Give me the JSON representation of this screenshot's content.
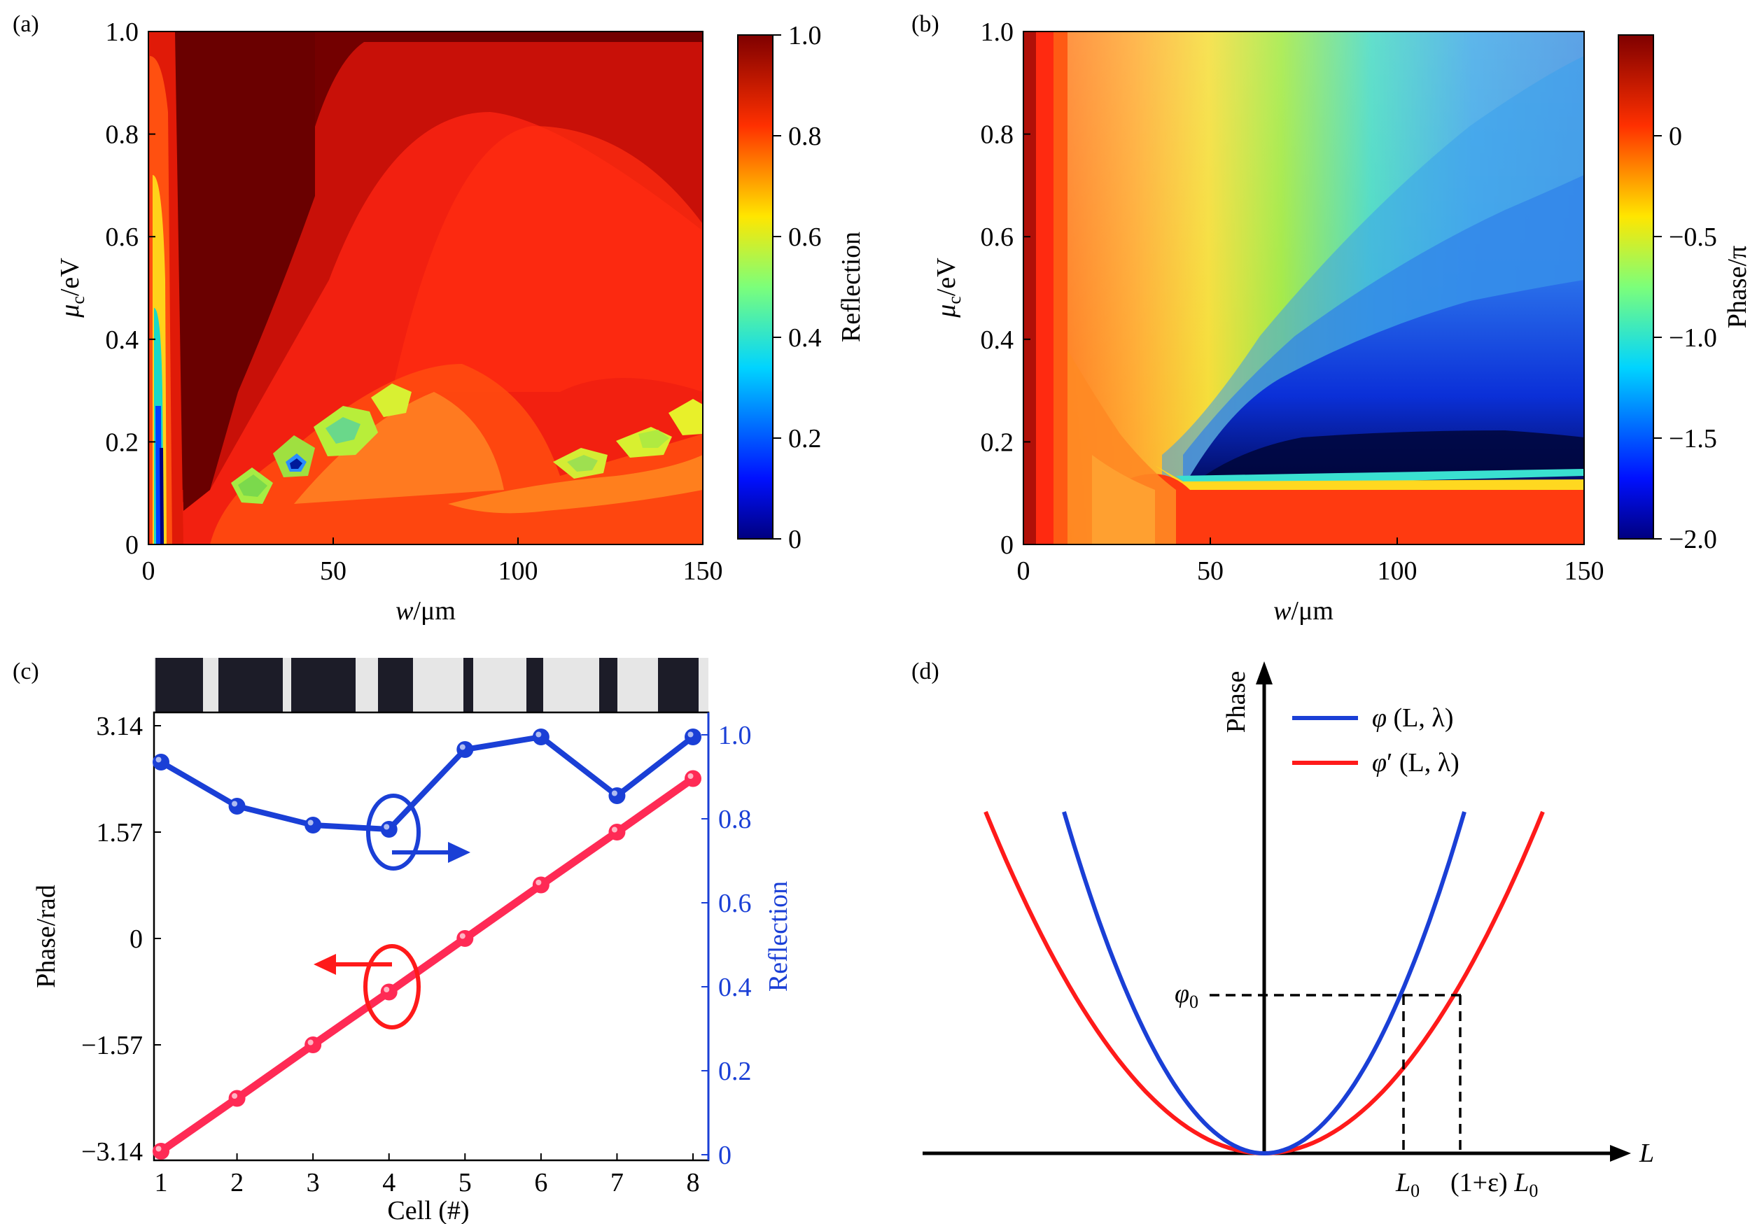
{
  "chart_data": [
    {
      "panel": "(a)",
      "type": "heatmap",
      "xlabel_italic": "w",
      "xlabel_rest": "/μm",
      "ylabel_sym": "μ",
      "ylabel_sub": "c",
      "ylabel_rest": "/eV",
      "xlim": [
        0,
        150
      ],
      "ylim": [
        0,
        1.0
      ],
      "xticks": [
        "0",
        "50",
        "100",
        "150"
      ],
      "yticks": [
        "0",
        "0.2",
        "0.4",
        "0.6",
        "0.8",
        "1.0"
      ],
      "colorbar": {
        "label": "Reflection",
        "range": [
          0,
          1.0
        ],
        "ticks": [
          "0",
          "0.2",
          "0.4",
          "0.6",
          "0.8",
          "1.0"
        ]
      }
    },
    {
      "panel": "(b)",
      "type": "heatmap",
      "xlabel_italic": "w",
      "xlabel_rest": "/μm",
      "ylabel_sym": "μ",
      "ylabel_sub": "c",
      "ylabel_rest": "/eV",
      "xlim": [
        0,
        150
      ],
      "ylim": [
        0,
        1.0
      ],
      "xticks": [
        "0",
        "50",
        "100",
        "150"
      ],
      "yticks": [
        "0",
        "0.2",
        "0.4",
        "0.6",
        "0.8",
        "1.0"
      ],
      "colorbar": {
        "label": "Phase/π",
        "range": [
          -2.0,
          0.5
        ],
        "ticks": [
          "−2.0",
          "−1.5",
          "−1.0",
          "−0.5",
          "0"
        ]
      }
    },
    {
      "panel": "(c)",
      "type": "line",
      "xlabel": "Cell (#)",
      "ylabel_left": "Phase/rad",
      "ylabel_right": "Reflection",
      "x": [
        1,
        2,
        3,
        4,
        5,
        6,
        7,
        8
      ],
      "xticks": [
        "1",
        "2",
        "3",
        "4",
        "5",
        "6",
        "7",
        "8"
      ],
      "yticks_left": [
        "−3.14",
        "−1.57",
        "0",
        "1.57",
        "3.14"
      ],
      "yticks_right": [
        "0",
        "0.2",
        "0.4",
        "0.6",
        "0.8",
        "1.0"
      ],
      "ylim_left": [
        -3.14,
        3.14
      ],
      "ylim_right": [
        0,
        1.0
      ],
      "series": [
        {
          "axis": "right",
          "color": "#1a3fd6",
          "values": [
            0.935,
            0.83,
            0.785,
            0.775,
            0.965,
            0.995,
            0.855,
            0.995
          ]
        },
        {
          "axis": "left",
          "color": "#ff2a55",
          "values": [
            -3.14,
            -2.36,
            -1.57,
            -0.79,
            0.0,
            0.79,
            1.57,
            2.36
          ]
        }
      ]
    },
    {
      "panel": "(d)",
      "type": "line",
      "xlabel": "L",
      "ylabel": "Phase",
      "legend": [
        {
          "sym": "φ",
          "prime": "",
          "args": " (L, λ)",
          "color": "#1a3fd6"
        },
        {
          "sym": "φ",
          "prime": "′",
          "args": " (L, λ)",
          "color": "#ff1a1a"
        }
      ],
      "annotations": {
        "phi0_sym": "φ",
        "phi0_sub": "0",
        "L0_sym": "L",
        "L0_sub": "0",
        "L1_prefix": "(1+ε) ",
        "L1_sym": "L",
        "L1_sub": "0"
      }
    }
  ]
}
